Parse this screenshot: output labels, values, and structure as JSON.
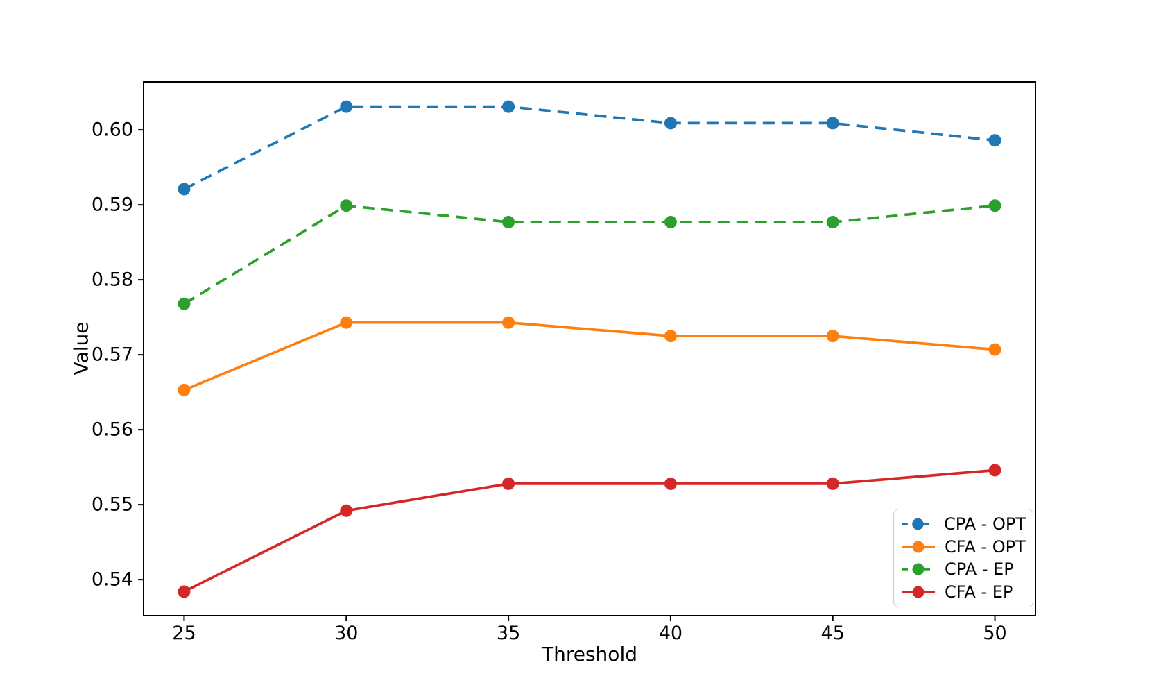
{
  "figure": {
    "background": "#ffffff"
  },
  "chart_data": {
    "type": "line",
    "title": "",
    "xlabel": "Threshold",
    "ylabel": "Value",
    "x": [
      25,
      30,
      35,
      40,
      45,
      50
    ],
    "x_tick_labels": [
      "25",
      "30",
      "35",
      "40",
      "45",
      "50"
    ],
    "y_tick_labels": [
      "0.54",
      "0.55",
      "0.56",
      "0.57",
      "0.58",
      "0.59",
      "0.60"
    ],
    "xlim": [
      23.75,
      51.25
    ],
    "ylim": [
      0.5352,
      0.6064
    ],
    "grid": false,
    "legend_position": "lower-right",
    "axis_color": "#000000",
    "series": [
      {
        "name": "CPA - OPT",
        "color": "#1f77b4",
        "line_style": "dashed",
        "marker": "circle",
        "values": [
          0.5921,
          0.6031,
          0.6031,
          0.6009,
          0.6009,
          0.5986
        ]
      },
      {
        "name": "CFA - OPT",
        "color": "#ff7f0e",
        "line_style": "solid",
        "marker": "circle",
        "values": [
          0.5653,
          0.5743,
          0.5743,
          0.5725,
          0.5725,
          0.5707
        ]
      },
      {
        "name": "CPA - EP",
        "color": "#2ca02c",
        "line_style": "dashed",
        "marker": "circle",
        "values": [
          0.5768,
          0.5899,
          0.5877,
          0.5877,
          0.5877,
          0.5899
        ]
      },
      {
        "name": "CFA - EP",
        "color": "#d62728",
        "line_style": "solid",
        "marker": "circle",
        "values": [
          0.5384,
          0.5492,
          0.5528,
          0.5528,
          0.5528,
          0.5546
        ]
      }
    ]
  }
}
